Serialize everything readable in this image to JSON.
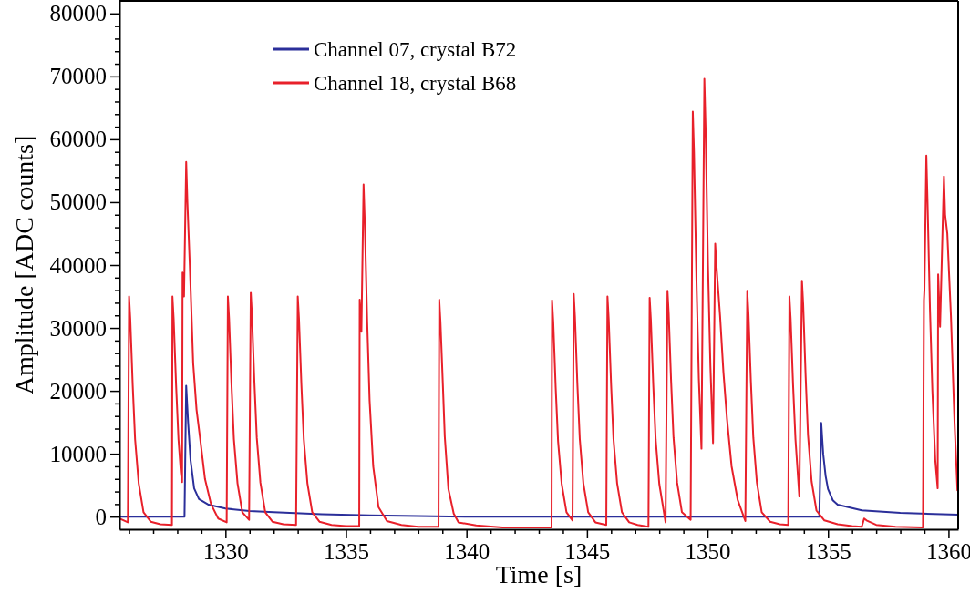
{
  "chart_data": {
    "type": "line",
    "xlabel": "Time [s]",
    "ylabel": "Amplitude [ADC counts]",
    "legend": "top left",
    "xlim": [
      1325.6,
      1360.4
    ],
    "ylim": [
      -2000,
      82000
    ],
    "xticks": [
      {
        "value": 1326,
        "label": null
      },
      {
        "value": 1327,
        "label": null
      },
      {
        "value": 1328,
        "label": null
      },
      {
        "value": 1329,
        "label": null
      },
      1330,
      {
        "value": 1331,
        "label": null
      },
      {
        "value": 1332,
        "label": null
      },
      {
        "value": 1333,
        "label": null
      },
      {
        "value": 1334,
        "label": null
      },
      1335,
      {
        "value": 1336,
        "label": null
      },
      {
        "value": 1337,
        "label": null
      },
      {
        "value": 1338,
        "label": null
      },
      {
        "value": 1339,
        "label": null
      },
      1340,
      {
        "value": 1341,
        "label": null
      },
      {
        "value": 1342,
        "label": null
      },
      {
        "value": 1343,
        "label": null
      },
      {
        "value": 1344,
        "label": null
      },
      1345,
      {
        "value": 1346,
        "label": null
      },
      {
        "value": 1347,
        "label": null
      },
      {
        "value": 1348,
        "label": null
      },
      {
        "value": 1349,
        "label": null
      },
      1350,
      {
        "value": 1351,
        "label": null
      },
      {
        "value": 1352,
        "label": null
      },
      {
        "value": 1353,
        "label": null
      },
      {
        "value": 1354,
        "label": null
      },
      1355,
      {
        "value": 1356,
        "label": null
      },
      {
        "value": 1357,
        "label": null
      },
      {
        "value": 1358,
        "label": null
      },
      {
        "value": 1359,
        "label": null
      },
      1360
    ],
    "yticks": [
      0,
      {
        "value": 2000,
        "label": null
      },
      {
        "value": 4000,
        "label": null
      },
      {
        "value": 6000,
        "label": null
      },
      {
        "value": 8000,
        "label": null
      },
      10000,
      {
        "value": 12000,
        "label": null
      },
      {
        "value": 14000,
        "label": null
      },
      {
        "value": 16000,
        "label": null
      },
      {
        "value": 18000,
        "label": null
      },
      20000,
      {
        "value": 22000,
        "label": null
      },
      {
        "value": 24000,
        "label": null
      },
      {
        "value": 26000,
        "label": null
      },
      {
        "value": 28000,
        "label": null
      },
      30000,
      {
        "value": 32000,
        "label": null
      },
      {
        "value": 34000,
        "label": null
      },
      {
        "value": 36000,
        "label": null
      },
      {
        "value": 38000,
        "label": null
      },
      40000,
      {
        "value": 42000,
        "label": null
      },
      {
        "value": 44000,
        "label": null
      },
      {
        "value": 46000,
        "label": null
      },
      {
        "value": 48000,
        "label": null
      },
      50000,
      {
        "value": 52000,
        "label": null
      },
      {
        "value": 54000,
        "label": null
      },
      {
        "value": 56000,
        "label": null
      },
      {
        "value": 58000,
        "label": null
      },
      60000,
      {
        "value": 62000,
        "label": null
      },
      {
        "value": 64000,
        "label": null
      },
      {
        "value": 66000,
        "label": null
      },
      {
        "value": 68000,
        "label": null
      },
      70000,
      {
        "value": 72000,
        "label": null
      },
      {
        "value": 74000,
        "label": null
      },
      {
        "value": 76000,
        "label": null
      },
      {
        "value": 78000,
        "label": null
      },
      80000
    ],
    "series": [
      {
        "name": "Channel 07, crystal B72",
        "color": "#2b2f9a",
        "x": [
          1325.6,
          1328.3,
          1328.37,
          1328.45,
          1328.55,
          1328.7,
          1328.9,
          1329.3,
          1330,
          1331,
          1332,
          1334,
          1336,
          1338,
          1340,
          1354.64,
          1354.72,
          1354.8,
          1354.9,
          1355.0,
          1355.2,
          1355.4,
          1356.4,
          1358,
          1360.4
        ],
        "values": [
          0,
          0,
          20800,
          15000,
          9000,
          4500,
          2800,
          1900,
          1300,
          900,
          700,
          400,
          200,
          100,
          0,
          0,
          14900,
          10000,
          6500,
          4400,
          2600,
          1900,
          1000,
          600,
          300
        ]
      },
      {
        "name": "Channel 18, crystal B68",
        "color": "#e8202a",
        "x": [
          1325.6,
          1325.95,
          1326.0,
          1326.05,
          1326.15,
          1326.25,
          1326.4,
          1326.6,
          1326.9,
          1327.3,
          1327.78,
          1327.8,
          1327.85,
          1327.95,
          1328.05,
          1328.15,
          1328.2,
          1328.22,
          1328.28,
          1328.37,
          1328.42,
          1328.52,
          1328.66,
          1328.8,
          1328.94,
          1329.15,
          1329.4,
          1329.7,
          1330.05,
          1330.1,
          1330.15,
          1330.25,
          1330.35,
          1330.5,
          1330.7,
          1330.98,
          1331.05,
          1331.1,
          1331.2,
          1331.3,
          1331.45,
          1331.65,
          1331.95,
          1332.4,
          1332.93,
          1333.0,
          1333.05,
          1333.15,
          1333.25,
          1333.4,
          1333.6,
          1333.9,
          1334.4,
          1335.0,
          1335.55,
          1335.57,
          1335.64,
          1335.73,
          1335.78,
          1335.88,
          1335.98,
          1336.13,
          1336.35,
          1336.7,
          1337.3,
          1338.0,
          1338.84,
          1338.87,
          1338.92,
          1339.02,
          1339.1,
          1339.25,
          1339.47,
          1339.67,
          1340.4,
          1341.5,
          1343.53,
          1343.55,
          1343.6,
          1343.7,
          1343.8,
          1343.95,
          1344.15,
          1344.4,
          1344.45,
          1344.5,
          1344.6,
          1344.7,
          1344.85,
          1345.05,
          1345.35,
          1345.8,
          1345.85,
          1345.9,
          1346.0,
          1346.1,
          1346.25,
          1346.45,
          1346.75,
          1347.1,
          1347.55,
          1347.6,
          1347.65,
          1347.75,
          1347.85,
          1348.0,
          1348.26,
          1348.34,
          1348.39,
          1348.49,
          1348.59,
          1348.74,
          1348.94,
          1349.3,
          1349.39,
          1349.44,
          1349.54,
          1349.64,
          1349.75,
          1349.87,
          1349.92,
          1350.02,
          1350.12,
          1350.23,
          1350.32,
          1350.37,
          1350.52,
          1350.66,
          1350.81,
          1351.0,
          1351.25,
          1351.57,
          1351.65,
          1351.7,
          1351.8,
          1351.9,
          1352.05,
          1352.25,
          1352.6,
          1353.0,
          1353.35,
          1353.4,
          1353.45,
          1353.55,
          1353.65,
          1353.81,
          1353.92,
          1353.97,
          1354.07,
          1354.17,
          1354.32,
          1354.52,
          1354.85,
          1355.4,
          1356.0,
          1356.4,
          1356.5,
          1356.6,
          1357.0,
          1357.8,
          1358.94,
          1358.98,
          1359.0,
          1359.08,
          1359.13,
          1359.23,
          1359.33,
          1359.45,
          1359.55,
          1359.57,
          1359.65,
          1359.81,
          1359.86,
          1359.95,
          1360.1,
          1360.25,
          1360.37
        ],
        "values": [
          -300,
          -900,
          35000,
          31500,
          21000,
          12300,
          5300,
          700,
          -800,
          -1200,
          -1300,
          35000,
          31500,
          21000,
          12300,
          7000,
          5500,
          38800,
          35000,
          56400,
          50000,
          40000,
          24400,
          17000,
          12700,
          6000,
          2000,
          -300,
          -900,
          35000,
          31500,
          21000,
          12300,
          5300,
          700,
          -500,
          35600,
          32000,
          21400,
          12500,
          5400,
          700,
          -800,
          -1200,
          -1300,
          35000,
          31500,
          21000,
          12300,
          5300,
          700,
          -800,
          -1300,
          -1500,
          -1500,
          34500,
          29400,
          52800,
          47000,
          31000,
          18500,
          8000,
          1500,
          -700,
          -1300,
          -1600,
          -1600,
          34500,
          31000,
          21000,
          12700,
          4400,
          500,
          -900,
          -1400,
          -1700,
          -1700,
          34400,
          31000,
          20600,
          12000,
          5200,
          700,
          -600,
          35400,
          31800,
          21200,
          12400,
          5300,
          700,
          -900,
          -1300,
          35000,
          31500,
          21000,
          12300,
          5300,
          700,
          -900,
          -1300,
          -1600,
          34800,
          31300,
          20900,
          12200,
          5200,
          -900,
          35900,
          32300,
          21500,
          12600,
          5400,
          700,
          -500,
          64400,
          58000,
          38000,
          22000,
          10800,
          69600,
          62000,
          40000,
          24000,
          11700,
          43400,
          40000,
          32000,
          23000,
          15500,
          8000,
          2700,
          -700,
          35900,
          32300,
          21500,
          12600,
          5400,
          700,
          -800,
          -1200,
          -1300,
          35000,
          31500,
          21000,
          12300,
          3200,
          37500,
          33800,
          22500,
          13000,
          5600,
          1000,
          -600,
          -1200,
          -1500,
          -1600,
          -300,
          -600,
          -1300,
          -1600,
          -1700,
          34400,
          36000,
          57400,
          50000,
          33000,
          20000,
          9000,
          4500,
          38500,
          30200,
          54100,
          48000,
          45000,
          32000,
          15000,
          4200
        ]
      }
    ]
  }
}
